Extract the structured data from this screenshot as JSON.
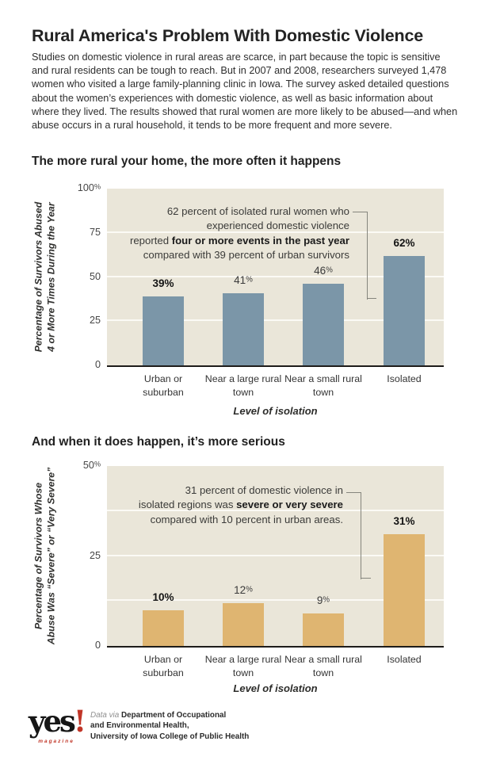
{
  "page": {
    "title": "Rural America's Problem With Domestic Violence",
    "intro": "Studies on domestic violence in rural areas are scarce, in part because the topic is sensitive and rural residents can be tough to reach. But in 2007 and 2008, researchers surveyed 1,478 women who visited a large family-planning clinic in Iowa. The survey asked detailed questions about the women’s experiences with domestic violence, as well as basic information about where they lived. The results showed that rural women are more likely to be abused—and when abuse occurs in a rural household, it tends to be more frequent and more severe."
  },
  "colors": {
    "plot_background": "#EAE6D9",
    "gridline": "#FBFAF5",
    "bar_blue": "#7B96A8",
    "bar_tan": "#DFB571",
    "axis": "#1E1C1A",
    "bracket": "#85857D",
    "logo_red": "#C13628"
  },
  "chart_data": [
    {
      "type": "bar",
      "heading": "The more rural your home, the more often it happens",
      "ymax": 100,
      "ylim": [
        0,
        100
      ],
      "yticks": [
        {
          "label": "100%",
          "value": 100
        },
        {
          "label": "75",
          "value": 75
        },
        {
          "label": "50",
          "value": 50
        },
        {
          "label": "25",
          "value": 25
        },
        {
          "label": "0",
          "value": 0
        }
      ],
      "gridline_values": [
        75,
        50,
        25
      ],
      "bar_color": "#7B96A8",
      "bars": [
        {
          "category": "Urban or suburban",
          "value": 39,
          "label": "39%",
          "bold": true
        },
        {
          "category": "Near a large rural town",
          "value": 41,
          "label": "41%",
          "bold": false
        },
        {
          "category": "Near a small rural town",
          "value": 46,
          "label": "46%",
          "bold": false
        },
        {
          "category": "Isolated",
          "value": 62,
          "label": "62%",
          "bold": true
        }
      ],
      "ylabel_lines": [
        "Percentage of Survivors Abused",
        "4 or More Times During the Year"
      ],
      "xlabel": "Level of isolation",
      "annotation_lines": [
        [
          {
            "t": "62 percent of isolated rural women who"
          }
        ],
        [
          {
            "t": "experienced domestic violence"
          }
        ],
        [
          {
            "t": "reported "
          },
          {
            "t": "four or more events in the past year",
            "b": true
          }
        ],
        [
          {
            "t": "compared with 39 percent of urban survivors"
          }
        ]
      ]
    },
    {
      "type": "bar",
      "heading": "And when it does happen, it’s more serious",
      "ymax": 50,
      "ylim": [
        0,
        50
      ],
      "yticks": [
        {
          "label": "50%",
          "value": 50
        },
        {
          "label": "25",
          "value": 25
        },
        {
          "label": "0",
          "value": 0
        }
      ],
      "gridline_values": [
        37.5,
        25,
        12.5
      ],
      "bar_color": "#DFB571",
      "bars": [
        {
          "category": "Urban or suburban",
          "value": 10,
          "label": "10%",
          "bold": true
        },
        {
          "category": "Near a large rural town",
          "value": 12,
          "label": "12%",
          "bold": false
        },
        {
          "category": "Near a small rural town",
          "value": 9,
          "label": "9%",
          "bold": false
        },
        {
          "category": "Isolated",
          "value": 31,
          "label": "31%",
          "bold": true
        }
      ],
      "ylabel_lines": [
        "Percentage of Survivors Whose",
        "Abuse Was “Severe” or “Very Severe”"
      ],
      "xlabel": "Level of isolation",
      "annotation_lines": [
        [
          {
            "t": "31 percent of domestic violence in"
          }
        ],
        [
          {
            "t": "isolated regions was "
          },
          {
            "t": "severe or very severe",
            "b": true
          }
        ],
        [
          {
            "t": "compared with 10 percent in urban areas."
          }
        ]
      ]
    }
  ],
  "footer": {
    "logo_text": "yes",
    "logo_bang": "!",
    "logo_sub": "magazine",
    "credit_prefix": "Data via ",
    "credit_lines": [
      "Department of Occupational",
      "and Environmental Health,",
      "University of Iowa College of Public Health"
    ]
  }
}
